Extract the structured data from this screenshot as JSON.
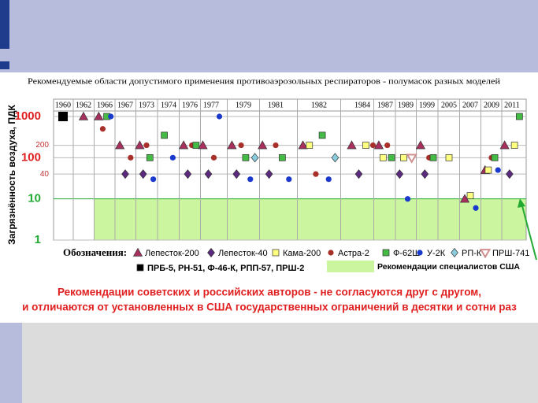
{
  "chart_data": {
    "type": "scatter",
    "title": "Рекомендуемые области допустимого применения противоаэрозольных респираторов - полумасок разных моделей",
    "y_label": "Загрязнённость воздуха,  ПДК",
    "legend_title": "Обозначения:",
    "categories": [
      "1960",
      "1962",
      "1966",
      "1967",
      "1973",
      "1974",
      "1976",
      "1977",
      "1979",
      "1981",
      "1982",
      "1984",
      "1987",
      "1989",
      "1999",
      "2005",
      "2007",
      "2009",
      "2011"
    ],
    "log_y": true,
    "ylim": [
      1,
      1000
    ],
    "yticks": [
      1,
      10,
      40,
      100,
      200,
      1000
    ],
    "us_limit": 10,
    "us_limit_color": "#ccf5a0",
    "us_limit_label": "Рекомендации специалистов США",
    "series": [
      {
        "name": "Лепесток-200",
        "marker": "triangle",
        "color": "#a8305e",
        "values": [
          null,
          1000,
          1000,
          200,
          200,
          null,
          200,
          200,
          200,
          200,
          200,
          200,
          200,
          null,
          200,
          null,
          10,
          50,
          200
        ]
      },
      {
        "name": "Лепесток-40",
        "marker": "diamond",
        "color": "#5b2a7e",
        "values": [
          null,
          null,
          null,
          40,
          40,
          null,
          40,
          40,
          40,
          40,
          null,
          40,
          null,
          40,
          40,
          null,
          null,
          null,
          40
        ]
      },
      {
        "name": "Кама-200",
        "marker": "square",
        "color": "#ffff80",
        "values": [
          null,
          null,
          null,
          null,
          null,
          null,
          null,
          null,
          null,
          null,
          200,
          200,
          100,
          100,
          null,
          100,
          12,
          50,
          200
        ]
      },
      {
        "name": "Астра-2",
        "marker": "circle",
        "color": "#a8302a",
        "values": [
          null,
          null,
          500,
          100,
          200,
          null,
          200,
          100,
          200,
          200,
          40,
          200,
          200,
          null,
          100,
          null,
          null,
          100,
          null
        ]
      },
      {
        "name": "Ф-62Ш",
        "marker": "square",
        "color": "#44bb44",
        "values": [
          null,
          null,
          1000,
          null,
          100,
          350,
          200,
          null,
          100,
          100,
          350,
          null,
          100,
          null,
          100,
          null,
          null,
          100,
          1000
        ]
      },
      {
        "name": "У-2К",
        "marker": "circle",
        "color": "#1a3acc",
        "values": [
          null,
          null,
          1000,
          null,
          30,
          100,
          null,
          1000,
          30,
          30,
          30,
          null,
          null,
          10,
          null,
          null,
          6,
          50,
          null
        ]
      },
      {
        "name": "РП-К",
        "marker": "diamond",
        "color": "#88ccdd",
        "values": [
          null,
          null,
          null,
          null,
          null,
          null,
          null,
          null,
          100,
          null,
          100,
          null,
          null,
          null,
          null,
          null,
          null,
          null,
          null
        ]
      },
      {
        "name": "ПРШ-741",
        "marker": "invtriangle",
        "color": "#d09090",
        "values": [
          null,
          null,
          null,
          null,
          null,
          null,
          null,
          null,
          null,
          null,
          null,
          null,
          null,
          100,
          null,
          null,
          null,
          null,
          null
        ]
      },
      {
        "name": "ПРБ-5, РН-51, Ф-46-К, РПП-57, ПРШ-2",
        "marker": "bigsquare",
        "color": "#000000",
        "values": [
          1000,
          null,
          null,
          null,
          null,
          null,
          null,
          null,
          null,
          null,
          null,
          null,
          null,
          null,
          null,
          null,
          null,
          null,
          null
        ]
      }
    ],
    "conclusion": [
      "Рекомендации советских и российских авторов - не согласуются друг с другом,",
      "и отличаются от установленных в США государственных ограничений в десятки и сотни раз"
    ]
  }
}
